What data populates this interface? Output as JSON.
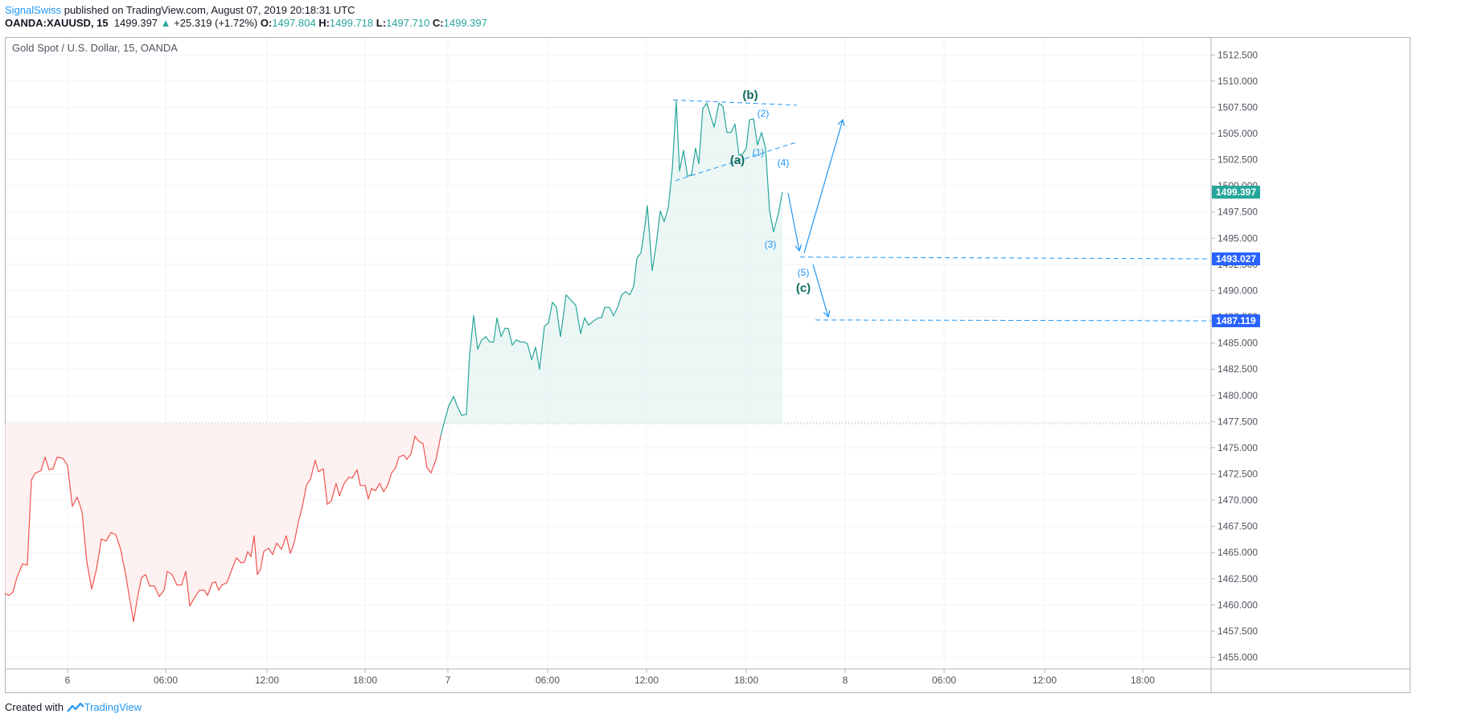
{
  "header": {
    "author": "SignalSwiss",
    "published": "published on TradingView.com, August 07, 2019 20:18:31 UTC"
  },
  "ohlc": {
    "symbol": "OANDA:XAUUSD, 15",
    "last": "1499.397",
    "change_arrow": "▲",
    "change": "+25.319 (+1.72%)",
    "o_label": "O:",
    "o": "1497.804",
    "h_label": "H:",
    "h": "1499.718",
    "l_label": "L:",
    "l": "1497.710",
    "c_label": "C:",
    "c": "1499.397"
  },
  "legend_title": "Gold Spot / U.S. Dollar, 15, OANDA",
  "footer": {
    "created_with": "Created with",
    "brand": "TradingView"
  },
  "colors": {
    "up": "#26a69a",
    "down": "#ef5350",
    "up_fill": "#e0f2ef",
    "down_fill": "#fde7e7",
    "annotation": "#2196f3",
    "badge_blue": "#2962ff",
    "badge_green": "#26a69a",
    "grid": "#f0f3fa",
    "wave_major": "#0e6b5e"
  },
  "chart_data": {
    "type": "line",
    "title": "Gold Spot / U.S. Dollar, 15, OANDA",
    "xlabel": "",
    "ylabel": "",
    "ylim": [
      1453.0,
      1513.5
    ],
    "xlim": [
      0,
      1500
    ],
    "grid": true,
    "baseline": 1477.3,
    "x_ticks": [
      {
        "x": 78,
        "label": "6"
      },
      {
        "x": 200,
        "label": "06:00"
      },
      {
        "x": 326,
        "label": "12:00"
      },
      {
        "x": 448,
        "label": "18:00"
      },
      {
        "x": 551,
        "label": "7"
      },
      {
        "x": 675,
        "label": "06:00"
      },
      {
        "x": 798,
        "label": "12:00"
      },
      {
        "x": 922,
        "label": "18:00"
      },
      {
        "x": 1045,
        "label": "8"
      },
      {
        "x": 1168,
        "label": "06:00"
      },
      {
        "x": 1293,
        "label": "12:00"
      },
      {
        "x": 1415,
        "label": "18:00"
      }
    ],
    "y_ticks": [
      "1455.000",
      "1457.500",
      "1460.000",
      "1462.500",
      "1465.000",
      "1467.500",
      "1470.000",
      "1472.500",
      "1475.000",
      "1477.500",
      "1480.000",
      "1482.500",
      "1485.000",
      "1487.500",
      "1490.000",
      "1492.500",
      "1495.000",
      "1497.500",
      "1500.000",
      "1502.500",
      "1505.000",
      "1507.500",
      "1510.000",
      "1512.500"
    ],
    "series": [
      {
        "values": [
          [
            0,
            1461.1
          ],
          [
            5,
            1460.9
          ],
          [
            10,
            1461.2
          ],
          [
            15,
            1462.6
          ],
          [
            22,
            1463.9
          ],
          [
            28,
            1463.8
          ],
          [
            33,
            1471.9
          ],
          [
            38,
            1472.6
          ],
          [
            45,
            1472.8
          ],
          [
            50,
            1474.1
          ],
          [
            55,
            1472.9
          ],
          [
            60,
            1473.0
          ],
          [
            65,
            1474.1
          ],
          [
            72,
            1474.0
          ],
          [
            78,
            1473.3
          ],
          [
            84,
            1469.4
          ],
          [
            90,
            1470.3
          ],
          [
            96,
            1468.9
          ],
          [
            102,
            1464.1
          ],
          [
            108,
            1461.5
          ],
          [
            114,
            1463.4
          ],
          [
            120,
            1466.3
          ],
          [
            126,
            1466.1
          ],
          [
            132,
            1466.9
          ],
          [
            138,
            1466.7
          ],
          [
            144,
            1465.3
          ],
          [
            150,
            1463.0
          ],
          [
            155,
            1460.7
          ],
          [
            160,
            1458.4
          ],
          [
            165,
            1460.7
          ],
          [
            170,
            1462.6
          ],
          [
            175,
            1462.9
          ],
          [
            180,
            1461.8
          ],
          [
            186,
            1461.8
          ],
          [
            192,
            1460.8
          ],
          [
            198,
            1461.4
          ],
          [
            202,
            1463.2
          ],
          [
            208,
            1462.9
          ],
          [
            214,
            1461.9
          ],
          [
            220,
            1461.9
          ],
          [
            225,
            1463.2
          ],
          [
            230,
            1459.9
          ],
          [
            236,
            1460.7
          ],
          [
            242,
            1461.4
          ],
          [
            248,
            1461.4
          ],
          [
            252,
            1460.9
          ],
          [
            258,
            1462.1
          ],
          [
            262,
            1462.2
          ],
          [
            266,
            1461.4
          ],
          [
            270,
            1461.9
          ],
          [
            276,
            1462.1
          ],
          [
            282,
            1463.3
          ],
          [
            288,
            1464.5
          ],
          [
            294,
            1464.0
          ],
          [
            298,
            1464.1
          ],
          [
            302,
            1465.1
          ],
          [
            306,
            1464.6
          ],
          [
            310,
            1466.6
          ],
          [
            314,
            1462.9
          ],
          [
            318,
            1463.4
          ],
          [
            322,
            1465.1
          ],
          [
            328,
            1465.4
          ],
          [
            333,
            1464.8
          ],
          [
            338,
            1465.9
          ],
          [
            344,
            1465.3
          ],
          [
            350,
            1466.6
          ],
          [
            355,
            1464.9
          ],
          [
            360,
            1466.0
          ],
          [
            365,
            1467.9
          ],
          [
            370,
            1469.4
          ],
          [
            375,
            1471.4
          ],
          [
            380,
            1472.0
          ],
          [
            386,
            1473.8
          ],
          [
            390,
            1472.7
          ],
          [
            396,
            1473.0
          ],
          [
            401,
            1469.6
          ],
          [
            406,
            1469.9
          ],
          [
            412,
            1471.6
          ],
          [
            416,
            1470.4
          ],
          [
            422,
            1471.6
          ],
          [
            428,
            1472.2
          ],
          [
            432,
            1472.1
          ],
          [
            438,
            1472.9
          ],
          [
            442,
            1471.4
          ],
          [
            448,
            1471.4
          ],
          [
            452,
            1470.1
          ],
          [
            456,
            1471.1
          ],
          [
            461,
            1470.9
          ],
          [
            466,
            1471.6
          ],
          [
            471,
            1470.8
          ],
          [
            476,
            1471.4
          ],
          [
            481,
            1472.6
          ],
          [
            486,
            1473.1
          ],
          [
            490,
            1474.1
          ],
          [
            496,
            1474.3
          ],
          [
            500,
            1473.9
          ],
          [
            505,
            1474.4
          ],
          [
            510,
            1476.1
          ],
          [
            515,
            1475.6
          ],
          [
            520,
            1475.4
          ],
          [
            525,
            1473.1
          ],
          [
            530,
            1472.6
          ],
          [
            536,
            1473.8
          ],
          [
            542,
            1476.1
          ]
        ]
      },
      {
        "values": [
          [
            542,
            1476.1
          ],
          [
            547,
            1477.6
          ],
          [
            552,
            1479.0
          ],
          [
            558,
            1479.9
          ],
          [
            563,
            1478.9
          ],
          [
            568,
            1478.1
          ],
          [
            574,
            1478.2
          ],
          [
            578,
            1483.9
          ],
          [
            583,
            1487.6
          ],
          [
            588,
            1484.4
          ],
          [
            593,
            1485.3
          ],
          [
            598,
            1485.6
          ],
          [
            603,
            1485.1
          ],
          [
            608,
            1485.1
          ],
          [
            612,
            1487.4
          ],
          [
            617,
            1485.6
          ],
          [
            622,
            1486.4
          ],
          [
            626,
            1486.4
          ],
          [
            631,
            1484.8
          ],
          [
            636,
            1485.3
          ],
          [
            641,
            1485.1
          ],
          [
            646,
            1485.1
          ],
          [
            650,
            1484.9
          ],
          [
            655,
            1483.4
          ],
          [
            660,
            1484.6
          ],
          [
            665,
            1482.5
          ],
          [
            671,
            1486.6
          ],
          [
            676,
            1486.9
          ],
          [
            681,
            1488.9
          ],
          [
            686,
            1488.4
          ],
          [
            691,
            1485.6
          ],
          [
            698,
            1489.6
          ],
          [
            704,
            1489.1
          ],
          [
            710,
            1488.6
          ],
          [
            716,
            1485.9
          ],
          [
            721,
            1487.4
          ],
          [
            726,
            1486.7
          ],
          [
            732,
            1487.1
          ],
          [
            738,
            1487.4
          ],
          [
            742,
            1487.4
          ],
          [
            746,
            1488.4
          ],
          [
            752,
            1488.4
          ],
          [
            757,
            1487.6
          ],
          [
            762,
            1488.4
          ],
          [
            767,
            1489.6
          ],
          [
            772,
            1489.9
          ],
          [
            777,
            1489.6
          ],
          [
            782,
            1490.4
          ],
          [
            786,
            1493.1
          ],
          [
            791,
            1493.6
          ],
          [
            795,
            1495.6
          ],
          [
            799,
            1498.1
          ],
          [
            805,
            1491.9
          ],
          [
            810,
            1494.4
          ],
          [
            815,
            1497.6
          ],
          [
            820,
            1496.6
          ],
          [
            825,
            1497.9
          ],
          [
            830,
            1501.6
          ],
          [
            835,
            1508.1
          ],
          [
            839,
            1501.4
          ],
          [
            844,
            1503.4
          ],
          [
            849,
            1500.9
          ],
          [
            854,
            1501.1
          ],
          [
            859,
            1503.6
          ],
          [
            863,
            1502.1
          ],
          [
            868,
            1507.4
          ],
          [
            873,
            1507.9
          ],
          [
            878,
            1506.6
          ],
          [
            882,
            1505.6
          ],
          [
            888,
            1507.9
          ],
          [
            893,
            1507.6
          ],
          [
            898,
            1505.1
          ],
          [
            903,
            1505.1
          ],
          [
            908,
            1505.9
          ],
          [
            913,
            1502.9
          ],
          [
            918,
            1503.1
          ],
          [
            922,
            1503.6
          ],
          [
            926,
            1506.3
          ],
          [
            931,
            1506.4
          ],
          [
            936,
            1503.9
          ],
          [
            941,
            1505.1
          ],
          [
            946,
            1503.6
          ],
          [
            951,
            1497.6
          ],
          [
            956,
            1495.6
          ],
          [
            962,
            1497.4
          ],
          [
            967,
            1499.4
          ]
        ]
      }
    ],
    "annotations": [
      {
        "label": "(b)",
        "x": 927,
        "y": 1508.3,
        "major": true
      },
      {
        "label": "(2)",
        "x": 943,
        "y": 1506.6,
        "major": false
      },
      {
        "label": "(a)",
        "x": 911,
        "y": 1502.1,
        "major": true
      },
      {
        "label": "(1)",
        "x": 937,
        "y": 1502.9,
        "major": false
      },
      {
        "label": "(4)",
        "x": 968,
        "y": 1501.9,
        "major": false
      },
      {
        "label": "(3)",
        "x": 952,
        "y": 1494.1,
        "major": false
      },
      {
        "label": "(5)",
        "x": 993,
        "y": 1491.4,
        "major": false
      },
      {
        "label": "(c)",
        "x": 993,
        "y": 1489.9,
        "major": true
      }
    ],
    "trend_lines": [
      {
        "from": [
          831,
          1508.2
        ],
        "to": [
          985,
          1507.7
        ],
        "style": "dashed",
        "color": "#2196f3"
      },
      {
        "from": [
          834,
          1500.5
        ],
        "to": [
          986,
          1504.2
        ],
        "style": "dashed",
        "color": "#2196f3"
      },
      {
        "from": [
          989,
          1493.2
        ],
        "to": [
          1500,
          1493.027
        ],
        "style": "dashed",
        "color": "#2196f3"
      },
      {
        "from": [
          1008,
          1487.2
        ],
        "to": [
          1500,
          1487.119
        ],
        "style": "dashed",
        "color": "#2196f3"
      }
    ],
    "arrows": [
      {
        "from": [
          974,
          1499.3
        ],
        "to": [
          988,
          1493.8
        ]
      },
      {
        "from": [
          994,
          1493.6
        ],
        "to": [
          1042,
          1506.3
        ]
      },
      {
        "from": [
          1005,
          1492.5
        ],
        "to": [
          1024,
          1487.5
        ]
      }
    ],
    "price_badges": [
      {
        "label": "1499.397",
        "value": 1499.397,
        "color": "#26a69a"
      },
      {
        "label": "1493.027",
        "value": 1493.027,
        "color": "#2962ff"
      },
      {
        "label": "1487.119",
        "value": 1487.119,
        "color": "#2962ff"
      }
    ]
  }
}
